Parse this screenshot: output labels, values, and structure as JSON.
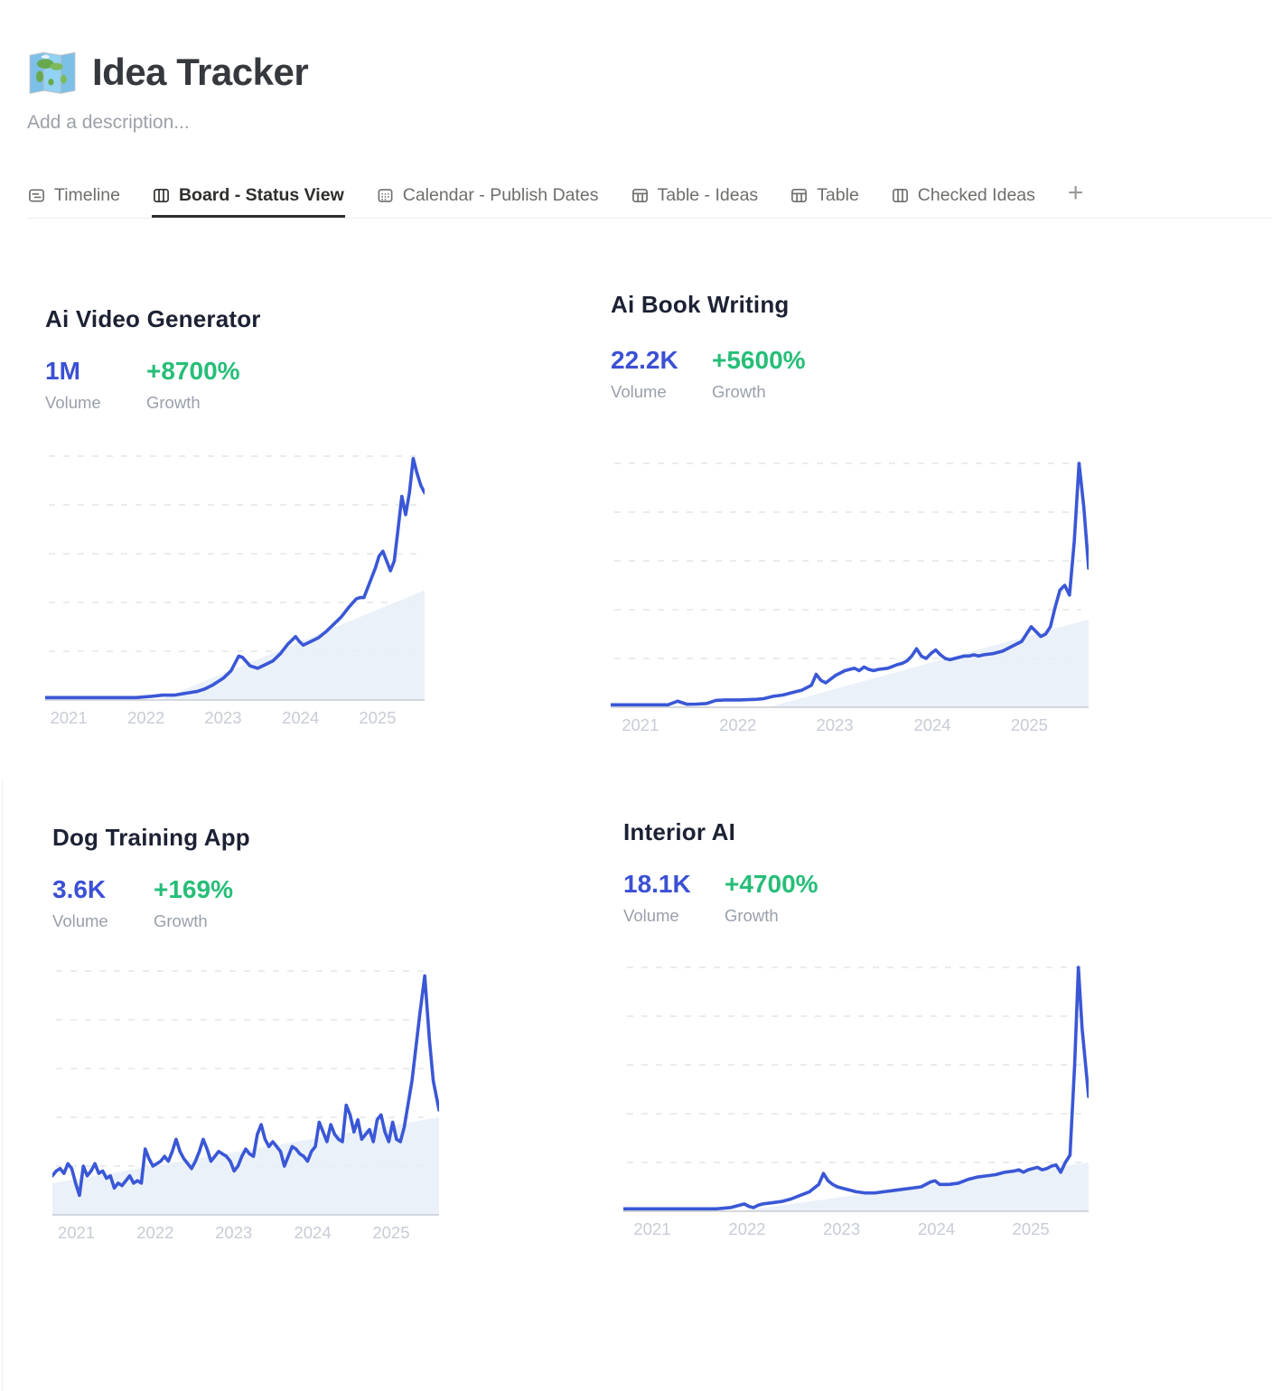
{
  "page": {
    "icon": "world-map-emoji",
    "title": "Idea Tracker",
    "description_placeholder": "Add a description..."
  },
  "tabs": [
    {
      "label": "Timeline",
      "icon": "timeline-icon",
      "active": false
    },
    {
      "label": "Board - Status View",
      "icon": "board-icon",
      "active": true
    },
    {
      "label": "Calendar - Publish Dates",
      "icon": "calendar-icon",
      "active": false
    },
    {
      "label": "Table - Ideas",
      "icon": "table-icon",
      "active": false
    },
    {
      "label": "Table",
      "icon": "table-icon",
      "active": false
    },
    {
      "label": "Checked Ideas",
      "icon": "board-icon",
      "active": false
    }
  ],
  "add_view_label": "+",
  "colors": {
    "accent_blue": "#3b50d4",
    "accent_green": "#26be78",
    "line_blue": "#3a57d6",
    "area_fill": "#e8eef8",
    "grid": "#e2e5ea",
    "baseline": "#c8ccd3",
    "axis_label": "#c7ccd6"
  },
  "chart_data": [
    {
      "type": "line",
      "title": "Ai Video Generator",
      "volume": "1M",
      "volume_label": "Volume",
      "growth": "+8700%",
      "growth_label": "Growth",
      "x_tick_labels": [
        "2021",
        "2022",
        "2023",
        "2024",
        "2025"
      ],
      "x_range": [
        "2021-01",
        "2025-09"
      ],
      "ylim": [
        0,
        100
      ],
      "grid": "dashed-horizontal",
      "points": [
        [
          0,
          1
        ],
        [
          4,
          1
        ],
        [
          8,
          1
        ],
        [
          12,
          1
        ],
        [
          16,
          1
        ],
        [
          20,
          1
        ],
        [
          24,
          1
        ],
        [
          28,
          1.5
        ],
        [
          31,
          2
        ],
        [
          34,
          2
        ],
        [
          36,
          2.5
        ],
        [
          38,
          3
        ],
        [
          40,
          3.5
        ],
        [
          42,
          4.5
        ],
        [
          44,
          6
        ],
        [
          46,
          8
        ],
        [
          47,
          9
        ],
        [
          49,
          12
        ],
        [
          51,
          18
        ],
        [
          52,
          17.5
        ],
        [
          54,
          14
        ],
        [
          56,
          13
        ],
        [
          58,
          14.5
        ],
        [
          60,
          16
        ],
        [
          62,
          19
        ],
        [
          64,
          23
        ],
        [
          66,
          26
        ],
        [
          67,
          24
        ],
        [
          68,
          22.5
        ],
        [
          70,
          24
        ],
        [
          72,
          25.5
        ],
        [
          74,
          28
        ],
        [
          76,
          31
        ],
        [
          78,
          34
        ],
        [
          80,
          38
        ],
        [
          82,
          41.5
        ],
        [
          83,
          42
        ],
        [
          84,
          42
        ],
        [
          85,
          46
        ],
        [
          86,
          50
        ],
        [
          87,
          54
        ],
        [
          88,
          59
        ],
        [
          89,
          61
        ],
        [
          90,
          57
        ],
        [
          91,
          53
        ],
        [
          92,
          57
        ],
        [
          93,
          70
        ],
        [
          94,
          83.5
        ],
        [
          95,
          76
        ],
        [
          96,
          85
        ],
        [
          97,
          99
        ],
        [
          98,
          93
        ],
        [
          99,
          88
        ],
        [
          100,
          85
        ]
      ],
      "trend_area": [
        [
          30,
          0
        ],
        [
          100,
          45
        ]
      ]
    },
    {
      "type": "line",
      "title": "Ai Book Writing",
      "volume": "22.2K",
      "volume_label": "Volume",
      "growth": "+5600%",
      "growth_label": "Growth",
      "x_tick_labels": [
        "2021",
        "2022",
        "2023",
        "2024",
        "2025"
      ],
      "x_range": [
        "2021-01",
        "2025-09"
      ],
      "ylim": [
        0,
        100
      ],
      "grid": "dashed-horizontal",
      "points": [
        [
          0,
          1
        ],
        [
          4,
          1
        ],
        [
          8,
          1
        ],
        [
          12,
          1
        ],
        [
          14,
          2.5
        ],
        [
          16,
          1.2
        ],
        [
          18,
          1.3
        ],
        [
          20,
          1.5
        ],
        [
          22,
          2.8
        ],
        [
          24,
          3
        ],
        [
          27,
          3
        ],
        [
          30,
          3.2
        ],
        [
          32,
          3.5
        ],
        [
          34,
          4.5
        ],
        [
          36,
          5
        ],
        [
          38,
          6
        ],
        [
          40,
          7
        ],
        [
          42,
          9
        ],
        [
          43,
          13.5
        ],
        [
          44,
          11
        ],
        [
          45,
          10
        ],
        [
          47,
          13
        ],
        [
          49,
          15
        ],
        [
          51,
          16
        ],
        [
          52,
          15
        ],
        [
          53,
          16.5
        ],
        [
          54,
          15.5
        ],
        [
          55,
          15
        ],
        [
          56,
          15.5
        ],
        [
          58,
          16
        ],
        [
          60,
          17.5
        ],
        [
          61,
          18
        ],
        [
          62,
          19
        ],
        [
          63,
          21
        ],
        [
          64,
          24
        ],
        [
          65,
          21
        ],
        [
          66,
          20
        ],
        [
          67,
          22
        ],
        [
          68,
          23.5
        ],
        [
          69,
          21.5
        ],
        [
          70,
          20
        ],
        [
          71,
          19.5
        ],
        [
          72,
          20
        ],
        [
          73,
          20.5
        ],
        [
          74,
          21
        ],
        [
          75,
          21
        ],
        [
          76,
          21.5
        ],
        [
          77,
          21
        ],
        [
          78,
          21.5
        ],
        [
          80,
          22
        ],
        [
          82,
          23
        ],
        [
          84,
          25
        ],
        [
          86,
          27
        ],
        [
          87,
          30
        ],
        [
          88,
          33
        ],
        [
          89,
          31
        ],
        [
          90,
          29
        ],
        [
          91,
          30
        ],
        [
          92,
          33
        ],
        [
          93,
          41
        ],
        [
          94,
          48
        ],
        [
          95,
          50
        ],
        [
          96,
          46
        ],
        [
          97,
          68
        ],
        [
          98,
          100
        ],
        [
          99,
          82
        ],
        [
          100,
          57
        ]
      ],
      "trend_area": [
        [
          33,
          0
        ],
        [
          100,
          36
        ]
      ]
    },
    {
      "type": "line",
      "title": "Dog Training App",
      "volume": "3.6K",
      "volume_label": "Volume",
      "growth": "+169%",
      "growth_label": "Growth",
      "x_tick_labels": [
        "2021",
        "2022",
        "2023",
        "2024",
        "2025"
      ],
      "x_range": [
        "2021-01",
        "2025-09"
      ],
      "ylim": [
        0,
        100
      ],
      "grid": "dashed-horizontal",
      "points": [
        [
          0,
          16
        ],
        [
          1,
          18
        ],
        [
          2,
          19
        ],
        [
          3,
          17
        ],
        [
          4,
          21
        ],
        [
          5,
          19
        ],
        [
          6,
          13
        ],
        [
          7,
          8
        ],
        [
          8,
          20
        ],
        [
          9,
          16
        ],
        [
          10,
          18
        ],
        [
          11,
          21
        ],
        [
          12,
          17
        ],
        [
          13,
          18
        ],
        [
          14,
          15
        ],
        [
          15,
          16
        ],
        [
          16,
          11
        ],
        [
          17,
          13
        ],
        [
          18,
          12
        ],
        [
          19,
          14
        ],
        [
          20,
          16
        ],
        [
          21,
          13
        ],
        [
          22,
          14
        ],
        [
          23,
          13
        ],
        [
          24,
          27
        ],
        [
          25,
          23
        ],
        [
          26,
          20
        ],
        [
          27,
          21
        ],
        [
          28,
          22
        ],
        [
          29,
          24
        ],
        [
          30,
          22
        ],
        [
          31,
          26
        ],
        [
          32,
          31
        ],
        [
          33,
          26
        ],
        [
          34,
          23
        ],
        [
          35,
          21
        ],
        [
          36,
          19
        ],
        [
          37,
          22
        ],
        [
          38,
          26
        ],
        [
          39,
          31
        ],
        [
          40,
          27
        ],
        [
          41,
          22
        ],
        [
          42,
          24
        ],
        [
          43,
          26
        ],
        [
          44,
          25
        ],
        [
          45,
          24
        ],
        [
          46,
          22
        ],
        [
          47,
          18
        ],
        [
          48,
          20
        ],
        [
          49,
          24
        ],
        [
          50,
          27
        ],
        [
          51,
          25
        ],
        [
          52,
          24
        ],
        [
          53,
          33
        ],
        [
          54,
          37
        ],
        [
          55,
          31
        ],
        [
          56,
          28
        ],
        [
          57,
          30
        ],
        [
          58,
          28
        ],
        [
          59,
          26
        ],
        [
          60,
          20
        ],
        [
          61,
          24
        ],
        [
          62,
          28
        ],
        [
          63,
          27
        ],
        [
          64,
          25
        ],
        [
          65,
          24
        ],
        [
          66,
          22
        ],
        [
          67,
          26
        ],
        [
          68,
          28
        ],
        [
          69,
          38
        ],
        [
          70,
          34
        ],
        [
          71,
          30
        ],
        [
          72,
          37
        ],
        [
          73,
          33
        ],
        [
          74,
          31
        ],
        [
          75,
          30
        ],
        [
          76,
          45
        ],
        [
          77,
          41
        ],
        [
          78,
          34
        ],
        [
          79,
          39
        ],
        [
          80,
          31
        ],
        [
          81,
          33
        ],
        [
          82,
          35
        ],
        [
          83,
          30
        ],
        [
          84,
          39
        ],
        [
          85,
          41
        ],
        [
          86,
          34
        ],
        [
          87,
          30
        ],
        [
          88,
          38
        ],
        [
          89,
          31
        ],
        [
          90,
          30
        ],
        [
          91,
          36
        ],
        [
          93,
          55
        ],
        [
          95,
          82
        ],
        [
          96.3,
          98
        ],
        [
          97.5,
          72
        ],
        [
          98.5,
          55
        ],
        [
          100,
          43
        ]
      ],
      "trend_area": [
        [
          0,
          13
        ],
        [
          100,
          40
        ]
      ]
    },
    {
      "type": "line",
      "title": "Interior AI",
      "volume": "18.1K",
      "volume_label": "Volume",
      "growth": "+4700%",
      "growth_label": "Growth",
      "x_tick_labels": [
        "2021",
        "2022",
        "2023",
        "2024",
        "2025"
      ],
      "x_range": [
        "2021-01",
        "2025-09"
      ],
      "ylim": [
        0,
        100
      ],
      "grid": "dashed-horizontal",
      "points": [
        [
          0,
          1
        ],
        [
          5,
          1
        ],
        [
          10,
          1
        ],
        [
          15,
          1
        ],
        [
          20,
          1
        ],
        [
          23,
          1.5
        ],
        [
          25,
          2.5
        ],
        [
          26,
          3
        ],
        [
          27,
          2
        ],
        [
          28,
          1.5
        ],
        [
          29,
          2.5
        ],
        [
          30,
          3
        ],
        [
          32,
          3.5
        ],
        [
          34,
          4
        ],
        [
          36,
          5
        ],
        [
          38,
          6.5
        ],
        [
          40,
          8
        ],
        [
          41,
          9.5
        ],
        [
          42,
          11
        ],
        [
          43,
          15.5
        ],
        [
          44,
          12.5
        ],
        [
          45,
          11
        ],
        [
          46,
          10
        ],
        [
          47,
          9.5
        ],
        [
          48,
          9
        ],
        [
          49,
          8.5
        ],
        [
          50,
          8
        ],
        [
          52,
          7.5
        ],
        [
          54,
          7.5
        ],
        [
          56,
          8
        ],
        [
          58,
          8.5
        ],
        [
          60,
          9
        ],
        [
          62,
          9.5
        ],
        [
          64,
          10
        ],
        [
          66,
          12
        ],
        [
          67,
          12.5
        ],
        [
          68,
          11
        ],
        [
          70,
          11
        ],
        [
          72,
          11.5
        ],
        [
          74,
          13
        ],
        [
          76,
          14
        ],
        [
          78,
          14.5
        ],
        [
          80,
          15
        ],
        [
          82,
          16
        ],
        [
          84,
          16.5
        ],
        [
          85,
          17
        ],
        [
          86,
          16
        ],
        [
          87,
          17
        ],
        [
          88,
          17.5
        ],
        [
          89,
          18
        ],
        [
          90,
          17
        ],
        [
          91,
          17.5
        ],
        [
          92,
          18.5
        ],
        [
          93,
          19
        ],
        [
          94,
          16
        ],
        [
          95,
          20
        ],
        [
          96,
          23
        ],
        [
          97,
          60
        ],
        [
          97.8,
          100
        ],
        [
          98.6,
          75
        ],
        [
          100,
          47
        ]
      ],
      "trend_area": [
        [
          25,
          0
        ],
        [
          100,
          20
        ]
      ]
    }
  ]
}
